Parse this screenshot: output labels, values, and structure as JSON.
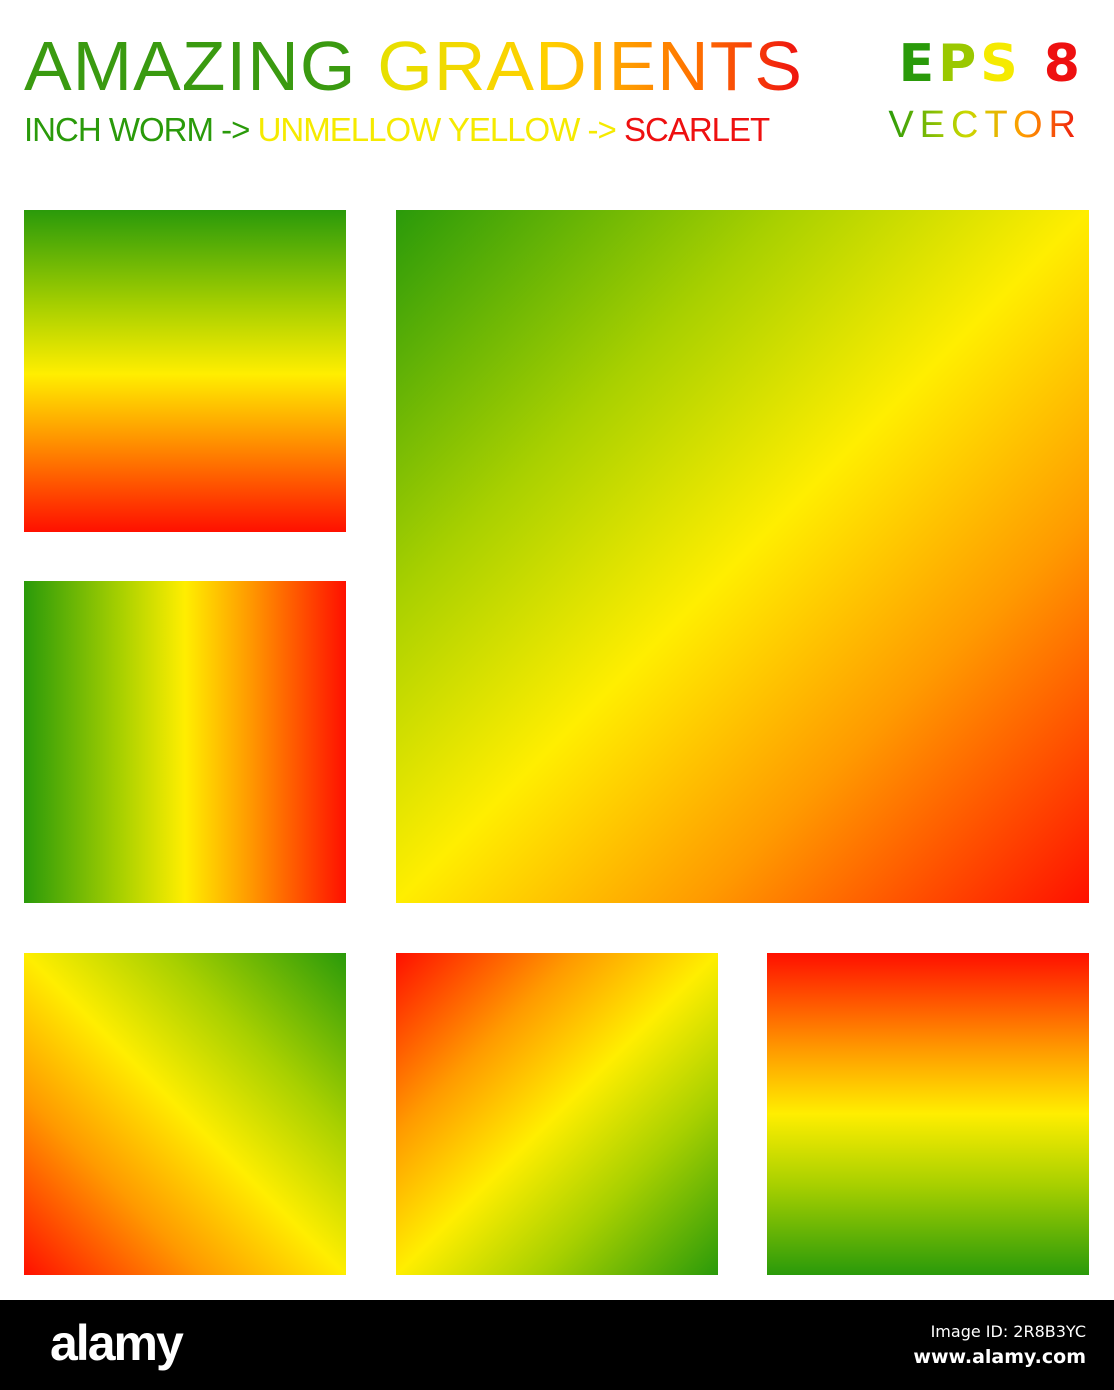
{
  "header": {
    "title_parts": [
      {
        "text": "AMAZING ",
        "color": "#3a9a10"
      },
      {
        "text": "GRADIENTS",
        "color": "#f0e000"
      }
    ],
    "subtitle_parts": [
      {
        "text": "INCH WORM ->",
        "color": "#2a9a0a"
      },
      {
        "text": " UNMELLOW YELLOW ->",
        "color": "#ffee00"
      },
      {
        "text": " SCARLET",
        "color": "#ee1010"
      }
    ],
    "eps": {
      "e": "E",
      "p": "P",
      "s": "S",
      "num": " 8"
    },
    "vector": "VECTOR"
  },
  "colors": {
    "inch_worm": "#2a9a0a",
    "unmellow_yellow": "#ffee00",
    "scarlet": "#ff1000"
  },
  "swatches": [
    {
      "direction": "vertical",
      "from": "inch_worm",
      "to": "scarlet"
    },
    {
      "direction": "horizontal",
      "from": "inch_worm",
      "to": "scarlet"
    },
    {
      "direction": "diagonal",
      "from": "inch_worm",
      "to": "scarlet"
    },
    {
      "direction": "diagonal-reverse",
      "from": "inch_worm",
      "to": "scarlet"
    },
    {
      "direction": "diagonal",
      "from": "scarlet",
      "to": "inch_worm"
    },
    {
      "direction": "vertical",
      "from": "scarlet",
      "to": "inch_worm"
    }
  ],
  "footer": {
    "logo": "alamy",
    "image_id": "Image ID: 2R8B3YC",
    "site": "www.alamy.com"
  }
}
